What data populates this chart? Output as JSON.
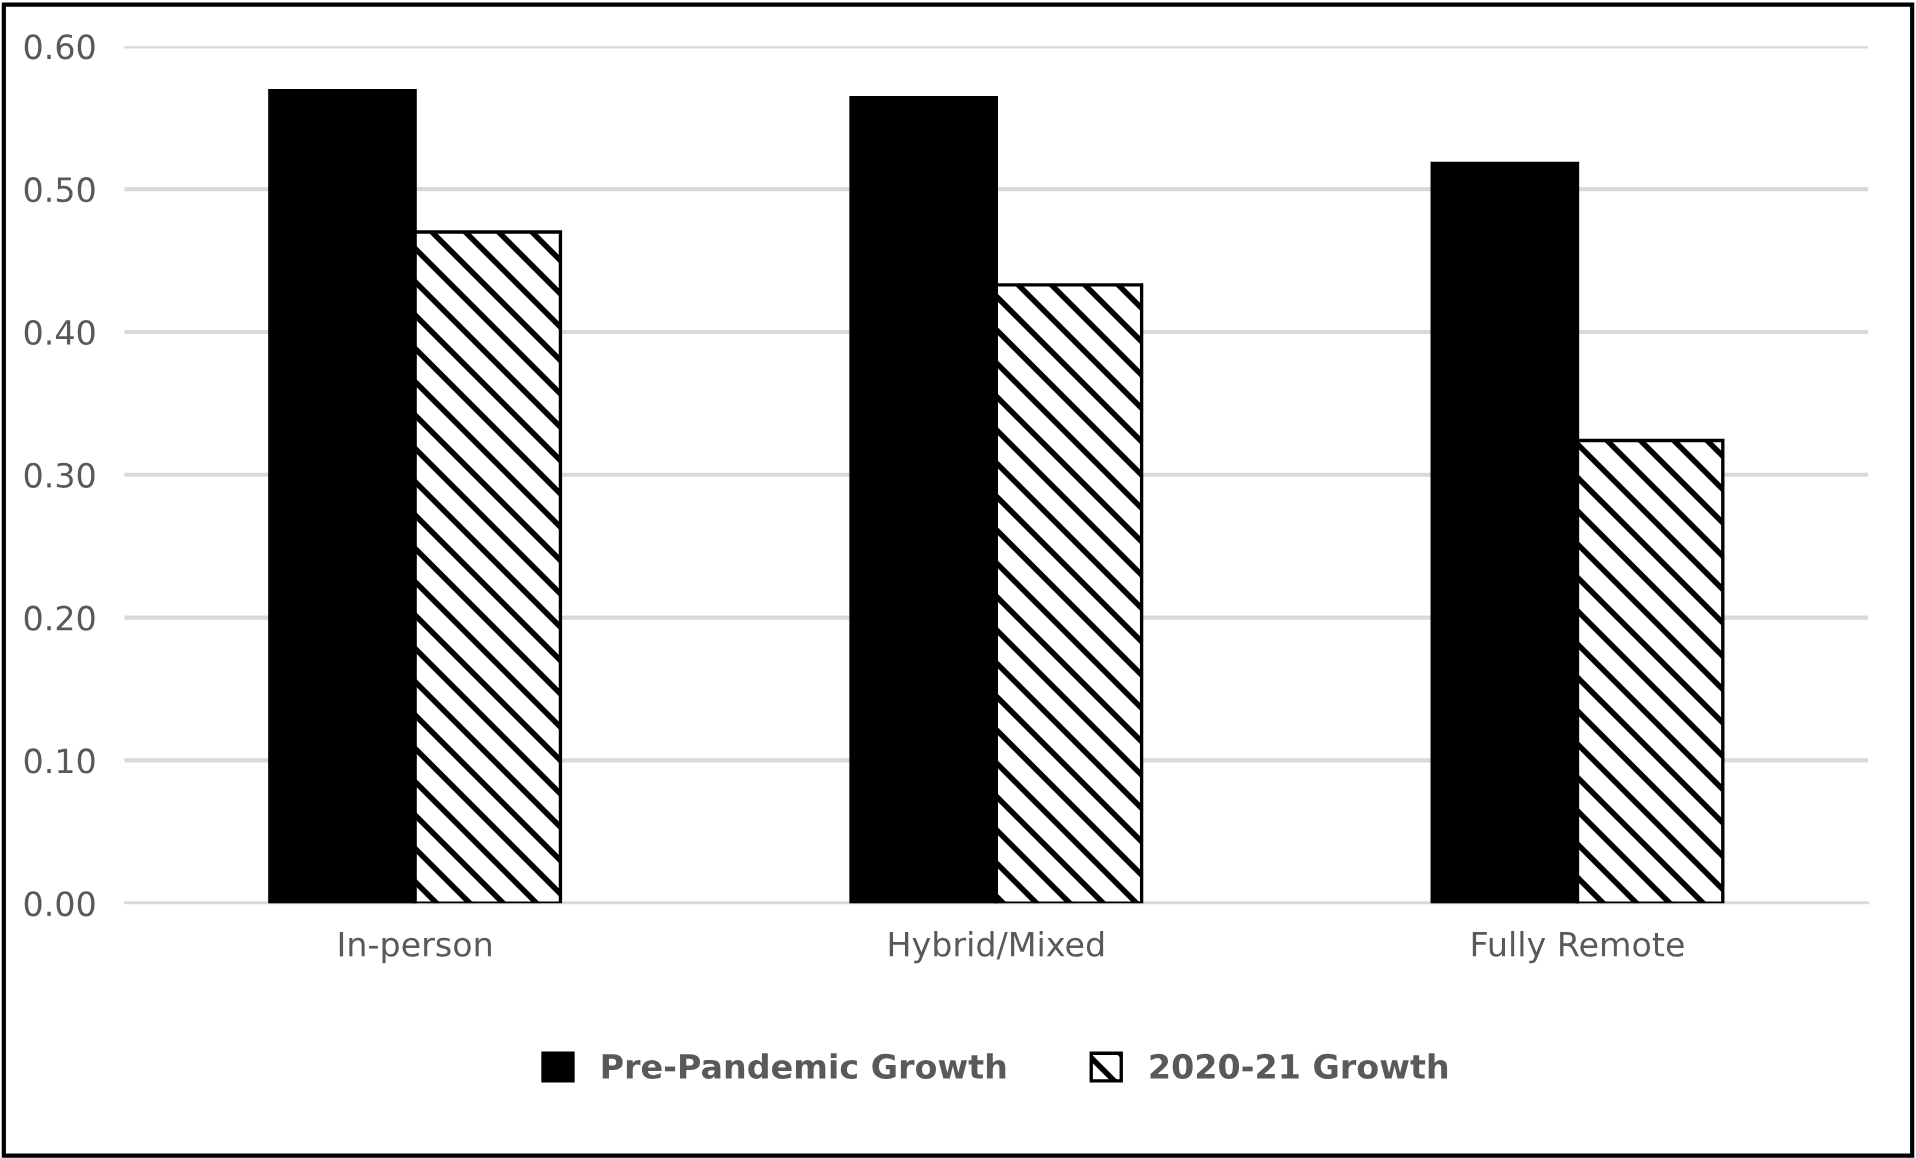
{
  "chart_data": {
    "type": "bar",
    "categories": [
      "In-person",
      "Hybrid/Mixed",
      "Fully Remote"
    ],
    "series": [
      {
        "name": "Pre-Pandemic Growth",
        "color": "#000000",
        "values": [
          0.569,
          0.564,
          0.518
        ]
      },
      {
        "name": "2020-21 Growth",
        "color": "#000000",
        "values": [
          0.47,
          0.433,
          0.324
        ]
      }
    ],
    "ylim": [
      0,
      0.6
    ],
    "yticks": [
      {
        "value": 0,
        "label": "0.00"
      },
      {
        "value": 0.1,
        "label": "0.10"
      },
      {
        "value": 0.2,
        "label": "0.20"
      },
      {
        "value": 0.3,
        "label": "0.30"
      },
      {
        "value": 0.4,
        "label": "0.40"
      },
      {
        "value": 0.5,
        "label": "0.50"
      },
      {
        "value": 0.6,
        "label": "0.60"
      }
    ],
    "grid": "y",
    "legend": "bottom"
  }
}
